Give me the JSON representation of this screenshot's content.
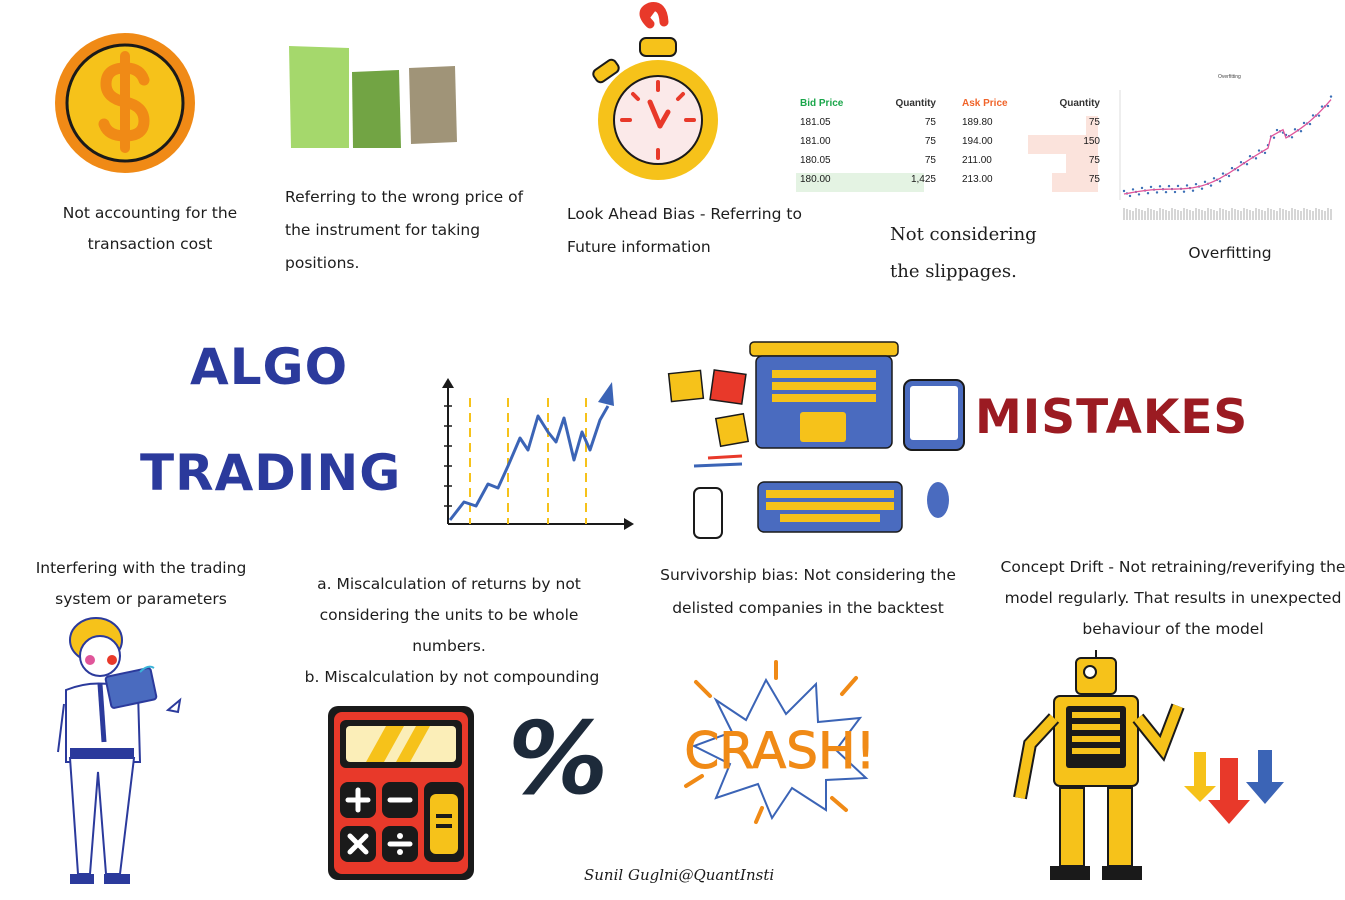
{
  "captions": {
    "transaction_cost": "Not accounting for the transaction cost",
    "wrong_price": "Referring to the wrong price of the instrument for taking positions.",
    "look_ahead": "Look Ahead Bias - Referring to Future information",
    "slippage": "Not considering the slippages.",
    "overfitting": "Overfitting",
    "interfering": "Interfering with the trading system or parameters",
    "miscalc_a": "a. Miscalculation of returns by not considering the units to be whole numbers.",
    "miscalc_b": "b. Miscalculation by not compounding",
    "survivorship": "Survivorship bias: Not considering the delisted companies in the backtest",
    "concept_drift": "Concept Drift - Not retraining/reverifying the model regularly. That results in unexpected  behaviour of the model"
  },
  "titles": {
    "algo": "ALGO",
    "trading": "TRADING",
    "mistakes": "MISTAKES"
  },
  "order_book": {
    "headers": [
      "Bid Price",
      "Quantity",
      "Ask Price",
      "Quantity"
    ],
    "rows": [
      [
        "181.05",
        "75",
        "189.80",
        "75"
      ],
      [
        "181.00",
        "75",
        "194.00",
        "150"
      ],
      [
        "180.05",
        "75",
        "211.00",
        "75"
      ],
      [
        "180.00",
        "1,425",
        "213.00",
        "75"
      ]
    ]
  },
  "overfit_chart_title": "Overfitting",
  "crash_text": "CRASH!",
  "percent_symbol": "%",
  "signature": "Sunil Guglni@QuantInsti",
  "colors": {
    "title_blue": "#2b3a9c",
    "mistakes_red": "#9b1b22",
    "coin_yellow": "#f6c21a",
    "coin_orange": "#f08a16",
    "bid_green": "#1aa64a",
    "ask_orange": "#f0642a",
    "laptop_blue": "#4a6bbf"
  }
}
